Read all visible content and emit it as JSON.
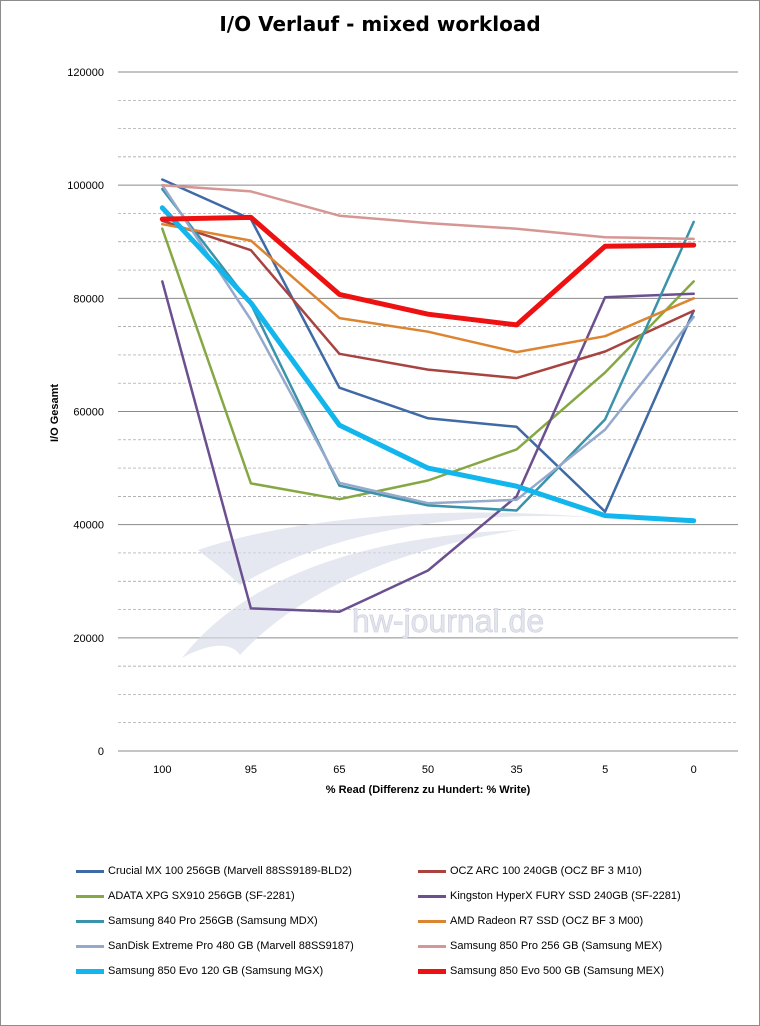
{
  "chart_data": {
    "type": "line",
    "title": "I/O Verlauf - mixed workload",
    "xlabel": "% Read (Differenz zu Hundert: % Write)",
    "ylabel": "I/O Gesamt",
    "categories": [
      "100",
      "95",
      "65",
      "50",
      "35",
      "5",
      "0"
    ],
    "ylim": [
      0,
      120000
    ],
    "yticks": [
      0,
      20000,
      40000,
      60000,
      80000,
      100000,
      120000
    ],
    "grid": true,
    "legend_position": "bottom",
    "watermark": "hw-journal.de",
    "series": [
      {
        "name": "Crucial MX 100 256GB (Marvell 88SS9189-BLD2)",
        "color": "#3f6aa6",
        "bold": false,
        "values": [
          101000,
          94000,
          64200,
          58800,
          57300,
          42300,
          77800
        ]
      },
      {
        "name": "OCZ ARC 100 240GB (OCZ BF 3 M10)",
        "color": "#a84340",
        "bold": false,
        "values": [
          93700,
          88500,
          70200,
          67400,
          65900,
          70600,
          77800
        ]
      },
      {
        "name": "ADATA XPG SX910 256GB (SF-2281)",
        "color": "#86a844",
        "bold": false,
        "values": [
          92300,
          47300,
          44500,
          47800,
          53300,
          66900,
          83000
        ]
      },
      {
        "name": "Kingston HyperX FURY SSD 240GB (SF-2281)",
        "color": "#6b4f8f",
        "bold": false,
        "values": [
          83000,
          25200,
          24600,
          31900,
          45000,
          80200,
          80800
        ]
      },
      {
        "name": "Samsung 840 Pro 256GB (Samsung MDX)",
        "color": "#3a93aa",
        "bold": false,
        "values": [
          99300,
          79000,
          46900,
          43400,
          42500,
          58600,
          93500
        ]
      },
      {
        "name": "AMD Radeon R7 SSD (OCZ BF 3 M00)",
        "color": "#dd8430",
        "bold": false,
        "values": [
          93100,
          90200,
          76500,
          74100,
          70500,
          73300,
          80000
        ]
      },
      {
        "name": "SanDisk Extreme Pro 480 GB (Marvell 88SS9187)",
        "color": "#94a9cc",
        "bold": false,
        "values": [
          100000,
          76200,
          47400,
          43800,
          44400,
          56800,
          76700
        ]
      },
      {
        "name": "Samsung 850 Pro 256 GB (Samsung MEX)",
        "color": "#d69694",
        "bold": false,
        "values": [
          100000,
          98900,
          94600,
          93300,
          92300,
          90800,
          90500
        ]
      },
      {
        "name": "Samsung 850 Evo 120 GB (Samsung MGX)",
        "color": "#12b6ec",
        "bold": true,
        "values": [
          96000,
          79200,
          57600,
          50000,
          46800,
          41600,
          40700
        ]
      },
      {
        "name": "Samsung 850 Evo 500 GB (Samsung MEX)",
        "color": "#ee1111",
        "bold": true,
        "values": [
          94000,
          94300,
          80700,
          77200,
          75300,
          89200,
          89400
        ]
      }
    ]
  }
}
